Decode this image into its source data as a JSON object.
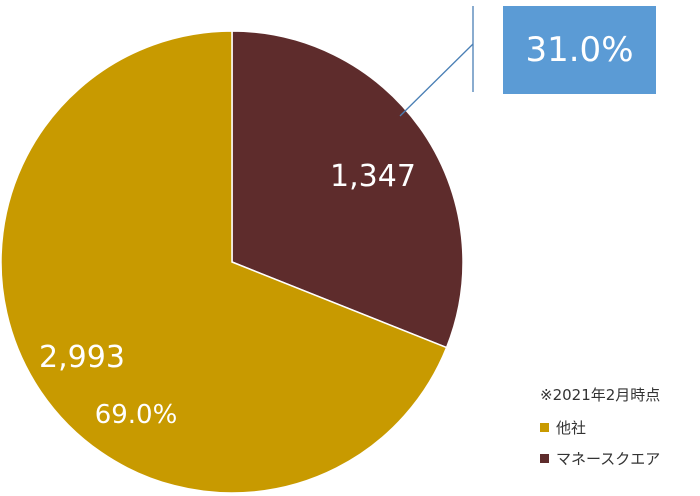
{
  "chart_data": {
    "type": "pie",
    "categories": [
      "他社",
      "マネースクエア"
    ],
    "values": [
      2993,
      1347
    ],
    "value_labels": [
      "2,993",
      "1,347"
    ],
    "percent_labels": [
      "69.0%",
      "31.0%"
    ],
    "colors": [
      "#c89a00",
      "#5e2c2c"
    ],
    "callout_color": "#5b9bd5",
    "legend_note": "※2021年2月時点",
    "legend_placement": "bottom-right"
  }
}
